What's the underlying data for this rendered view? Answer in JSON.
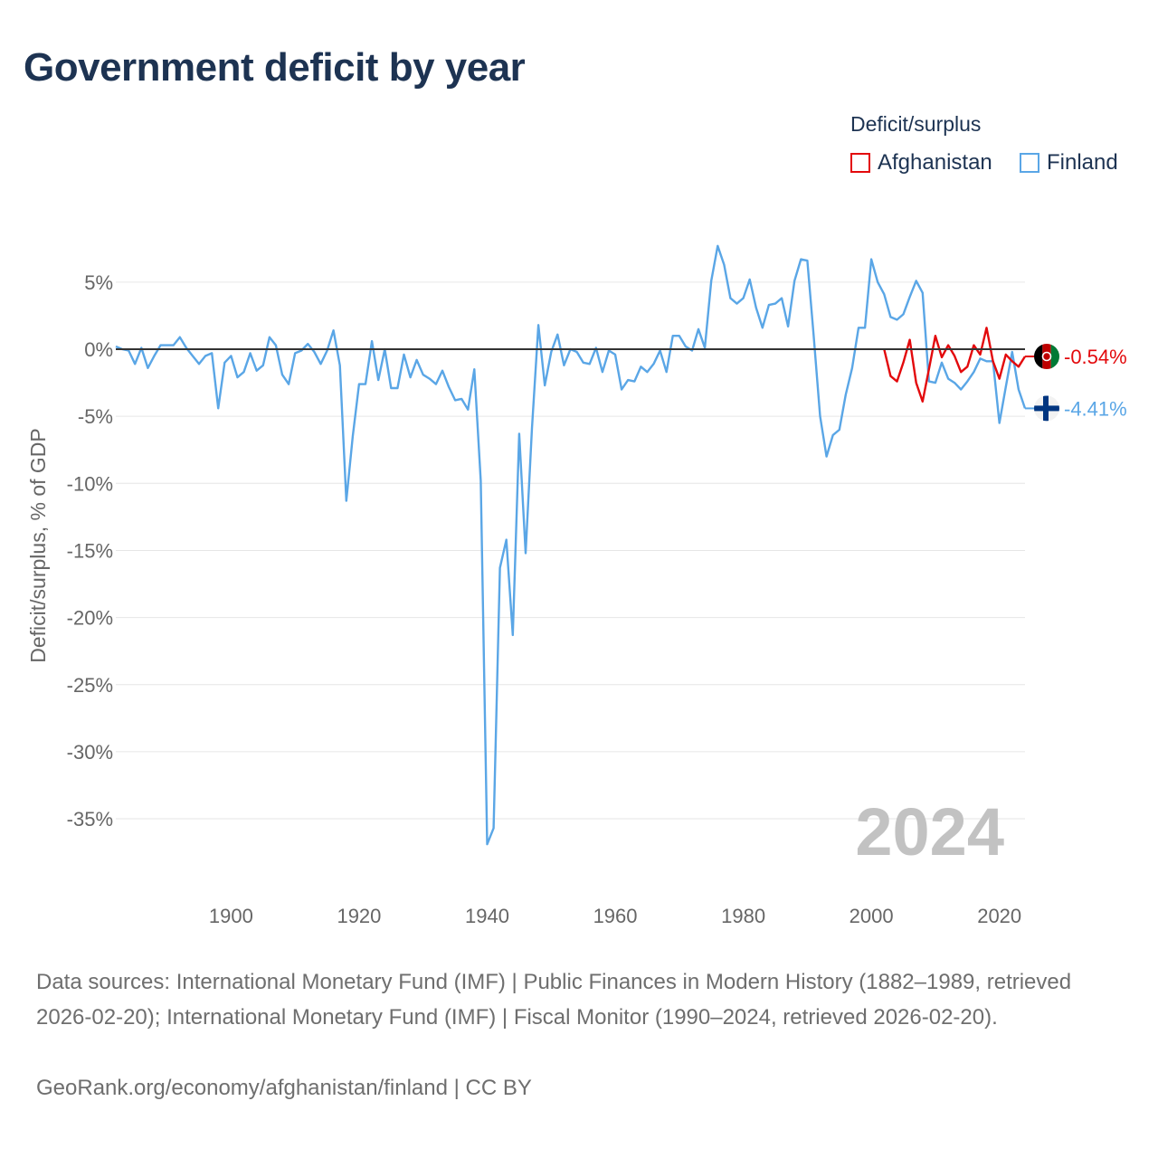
{
  "title": "Government deficit by year",
  "legend": {
    "title": "Deficit/surplus",
    "items": [
      {
        "label": "Afghanistan",
        "color": "#e3090c"
      },
      {
        "label": "Finland",
        "color": "#5aa6e6"
      }
    ]
  },
  "footer": {
    "sources": "Data sources: International Monetary Fund (IMF) | Public Finances in Modern History (1882–1989, retrieved 2026-02-20); International Monetary Fund (IMF) | Fiscal Monitor (1990–2024, retrieved 2026-02-20).",
    "credit": "GeoRank.org/economy/afghanistan/finland | CC BY"
  },
  "chart_data": {
    "type": "line",
    "title": "Government deficit by year",
    "xlabel": "",
    "ylabel": "Deficit/surplus, % of GDP",
    "xlim": [
      1882,
      2024
    ],
    "ylim": [
      -40,
      9
    ],
    "grid": true,
    "legend_position": "top-right",
    "current_year_label": "2024",
    "x_ticks": [
      1900,
      1920,
      1940,
      1960,
      1980,
      2000,
      2020
    ],
    "x_tick_labels": [
      "1900",
      "1920",
      "1940",
      "1960",
      "1980",
      "2000",
      "2020"
    ],
    "y_ticks": [
      5,
      0,
      -5,
      -10,
      -15,
      -20,
      -25,
      -30,
      -35
    ],
    "y_tick_labels": [
      "5%",
      "0%",
      "-5%",
      "-10%",
      "-15%",
      "-20%",
      "-25%",
      "-30%",
      "-35%"
    ],
    "series": [
      {
        "name": "Afghanistan",
        "color": "#e3090c",
        "end_label": "-0.54%",
        "x": [
          2002,
          2003,
          2004,
          2005,
          2006,
          2007,
          2008,
          2009,
          2010,
          2011,
          2012,
          2013,
          2014,
          2015,
          2016,
          2017,
          2018,
          2019,
          2020,
          2021,
          2022,
          2023,
          2024
        ],
        "values": [
          0.0,
          -2.0,
          -2.4,
          -1.0,
          0.7,
          -2.5,
          -3.9,
          -1.5,
          1.0,
          -0.6,
          0.3,
          -0.5,
          -1.7,
          -1.3,
          0.3,
          -0.4,
          1.6,
          -0.9,
          -2.2,
          -0.4,
          -0.9,
          -1.3,
          -0.54
        ]
      },
      {
        "name": "Finland",
        "color": "#5aa6e6",
        "end_label": "-4.41%",
        "x": [
          1882,
          1883,
          1884,
          1885,
          1886,
          1887,
          1888,
          1889,
          1890,
          1891,
          1892,
          1893,
          1894,
          1895,
          1896,
          1897,
          1898,
          1899,
          1900,
          1901,
          1902,
          1903,
          1904,
          1905,
          1906,
          1907,
          1908,
          1909,
          1910,
          1911,
          1912,
          1913,
          1914,
          1915,
          1916,
          1917,
          1918,
          1919,
          1920,
          1921,
          1922,
          1923,
          1924,
          1925,
          1926,
          1927,
          1928,
          1929,
          1930,
          1931,
          1932,
          1933,
          1934,
          1935,
          1936,
          1937,
          1938,
          1939,
          1940,
          1941,
          1942,
          1943,
          1944,
          1945,
          1946,
          1947,
          1948,
          1949,
          1950,
          1951,
          1952,
          1953,
          1954,
          1955,
          1956,
          1957,
          1958,
          1959,
          1960,
          1961,
          1962,
          1963,
          1964,
          1965,
          1966,
          1967,
          1968,
          1969,
          1970,
          1971,
          1972,
          1973,
          1974,
          1975,
          1976,
          1977,
          1978,
          1979,
          1980,
          1981,
          1982,
          1983,
          1984,
          1985,
          1986,
          1987,
          1988,
          1989,
          1990,
          1991,
          1992,
          1993,
          1994,
          1995,
          1996,
          1997,
          1998,
          1999,
          2000,
          2001,
          2002,
          2003,
          2004,
          2005,
          2006,
          2007,
          2008,
          2009,
          2010,
          2011,
          2012,
          2013,
          2014,
          2015,
          2016,
          2017,
          2018,
          2019,
          2020,
          2021,
          2022,
          2023,
          2024
        ],
        "values": [
          0.2,
          0.0,
          -0.1,
          -1.1,
          0.1,
          -1.4,
          -0.5,
          0.3,
          0.3,
          0.3,
          0.9,
          0.1,
          -0.5,
          -1.1,
          -0.5,
          -0.3,
          -4.4,
          -1.0,
          -0.5,
          -2.1,
          -1.7,
          -0.3,
          -1.6,
          -1.2,
          0.9,
          0.3,
          -1.9,
          -2.6,
          -0.3,
          -0.1,
          0.4,
          -0.2,
          -1.1,
          -0.1,
          1.4,
          -1.2,
          -11.3,
          -6.5,
          -2.6,
          -2.6,
          0.6,
          -2.3,
          0.0,
          -2.9,
          -2.9,
          -0.4,
          -2.1,
          -0.8,
          -1.9,
          -2.2,
          -2.6,
          -1.6,
          -2.8,
          -3.8,
          -3.7,
          -4.5,
          -1.5,
          -9.8,
          -36.9,
          -35.7,
          -16.3,
          -14.2,
          -21.3,
          -6.3,
          -15.2,
          -5.9,
          1.8,
          -2.7,
          -0.2,
          1.1,
          -1.2,
          0.0,
          -0.2,
          -1.0,
          -1.1,
          0.1,
          -1.7,
          -0.1,
          -0.4,
          -3.0,
          -2.3,
          -2.4,
          -1.3,
          -1.7,
          -1.1,
          -0.1,
          -1.7,
          1.0,
          1.0,
          0.2,
          -0.1,
          1.5,
          0.1,
          5.1,
          7.7,
          6.3,
          3.8,
          3.4,
          3.8,
          5.2,
          3.1,
          1.6,
          3.3,
          3.4,
          3.8,
          1.7,
          5.1,
          6.7,
          6.6,
          1.0,
          -5.0,
          -8.0,
          -6.4,
          -6.0,
          -3.4,
          -1.4,
          1.6,
          1.6,
          6.7,
          5.0,
          4.1,
          2.4,
          2.2,
          2.6,
          3.9,
          5.1,
          4.2,
          -2.4,
          -2.5,
          -1.0,
          -2.2,
          -2.5,
          -3.0,
          -2.4,
          -1.7,
          -0.7,
          -0.9,
          -0.9,
          -5.5,
          -2.8,
          -0.2,
          -3.0,
          -4.41
        ]
      }
    ]
  }
}
